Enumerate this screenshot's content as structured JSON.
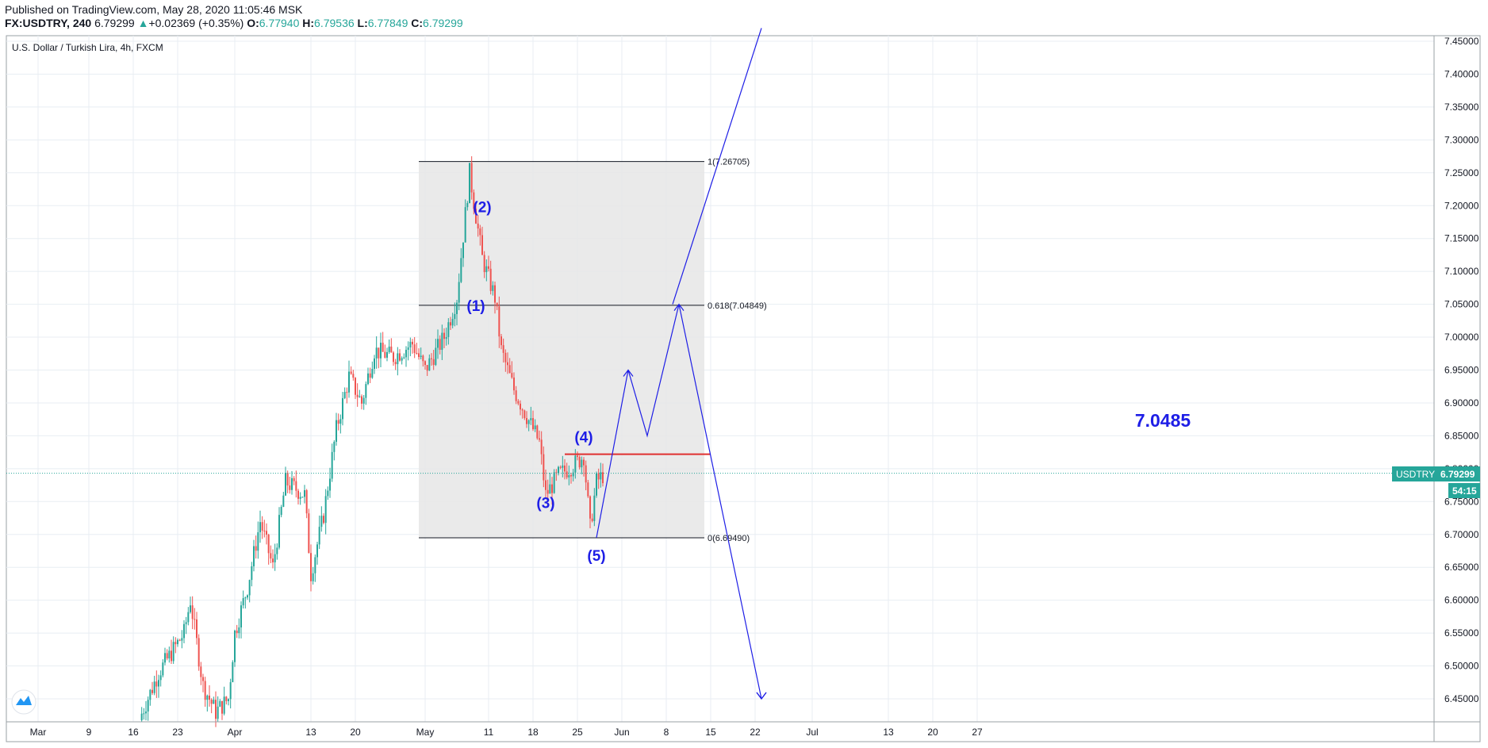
{
  "header": {
    "published": "Published on TradingView.com, May 28, 2020 11:05:46 MSK",
    "symbol": "FX:USDTRY, 240",
    "last": "6.79299",
    "change": "+0.02369 (+0.35%)",
    "o_label": "O:",
    "o": "6.77940",
    "h_label": "H:",
    "h": "6.79536",
    "l_label": "L:",
    "l": "6.77849",
    "c_label": "C:",
    "c": "6.79299"
  },
  "chart_title": "U.S. Dollar / Turkish Lira, 4h, FXCM",
  "price_tag": {
    "symbol": "USDTRY",
    "price": "6.79299",
    "countdown": "54:15"
  },
  "colors": {
    "up": "#26a69a",
    "down": "#ef5350",
    "drawing": "#1e1ee6",
    "level_line": "#e03030",
    "fib_box": "#e6e6e6"
  },
  "annotations": {
    "waves": [
      "(1)",
      "(2)",
      "(3)",
      "(4)",
      "(5)"
    ],
    "big_label": "7.0485",
    "fib": [
      "1(7.26705)",
      "0.618(7.04849)",
      "0(6.69490)"
    ]
  },
  "chart_data": {
    "type": "candlestick",
    "title": "U.S. Dollar / Turkish Lira, 4h, FXCM",
    "ylim": [
      6.42,
      7.47
    ],
    "y_ticks": [
      "7.45000",
      "7.40000",
      "7.35000",
      "7.30000",
      "7.25000",
      "7.20000",
      "7.15000",
      "7.10000",
      "7.05000",
      "7.00000",
      "6.95000",
      "6.90000",
      "6.85000",
      "6.80000",
      "6.75000",
      "6.70000",
      "6.65000",
      "6.60000",
      "6.55000",
      "6.50000",
      "6.45000"
    ],
    "x_ticks": [
      "Mar",
      "9",
      "16",
      "23",
      "Apr",
      "13",
      "20",
      "May",
      "11",
      "18",
      "25",
      "Jun",
      "8",
      "15",
      "22",
      "Jul",
      "13",
      "20",
      "27"
    ],
    "grid": true,
    "price_path": [
      [
        "2020-03-17",
        6.42
      ],
      [
        "2020-03-20",
        6.49
      ],
      [
        "2020-03-24",
        6.55
      ],
      [
        "2020-03-25",
        6.6
      ],
      [
        "2020-03-27",
        6.47
      ],
      [
        "2020-03-29",
        6.43
      ],
      [
        "2020-03-31",
        6.45
      ],
      [
        "2020-04-01",
        6.55
      ],
      [
        "2020-04-03",
        6.62
      ],
      [
        "2020-04-05",
        6.72
      ],
      [
        "2020-04-07",
        6.65
      ],
      [
        "2020-04-09",
        6.78
      ],
      [
        "2020-04-12",
        6.76
      ],
      [
        "2020-04-13",
        6.64
      ],
      [
        "2020-04-15",
        6.73
      ],
      [
        "2020-04-17",
        6.86
      ],
      [
        "2020-04-19",
        6.94
      ],
      [
        "2020-04-21",
        6.9
      ],
      [
        "2020-04-23",
        6.98
      ],
      [
        "2020-04-26",
        6.97
      ],
      [
        "2020-04-29",
        6.99
      ],
      [
        "2020-05-01",
        6.95
      ],
      [
        "2020-05-04",
        7.0
      ],
      [
        "2020-05-06",
        7.06
      ],
      [
        "2020-05-08",
        7.25
      ],
      [
        "2020-05-10",
        7.12
      ],
      [
        "2020-05-12",
        7.06
      ],
      [
        "2020-05-13",
        6.98
      ],
      [
        "2020-05-15",
        6.92
      ],
      [
        "2020-05-17",
        6.88
      ],
      [
        "2020-05-19",
        6.84
      ],
      [
        "2020-05-20",
        6.76
      ],
      [
        "2020-05-22",
        6.79
      ],
      [
        "2020-05-25",
        6.81
      ],
      [
        "2020-05-26",
        6.82
      ],
      [
        "2020-05-27",
        6.71
      ],
      [
        "2020-05-28",
        6.78
      ],
      [
        "2020-05-29",
        6.79
      ]
    ],
    "fib_retracement": {
      "levels": [
        1,
        0.618,
        0
      ],
      "prices": [
        7.26705,
        7.04849,
        6.6949
      ],
      "start": "2020-04-30",
      "end": "2020-06-14"
    },
    "horizontal_line": {
      "price": 6.822,
      "start": "2020-05-23",
      "end": "2020-06-15"
    },
    "projection_paths": [
      [
        [
          "2020-05-28",
          6.695
        ],
        [
          "2020-06-02",
          6.95
        ],
        [
          "2020-06-05",
          6.85
        ],
        [
          "2020-06-10",
          7.05
        ],
        [
          "2020-06-23",
          6.45
        ]
      ],
      [
        [
          "2020-06-09",
          7.05
        ],
        [
          "2020-06-23",
          7.47
        ]
      ]
    ],
    "wave_labels": [
      {
        "label": "(1)",
        "x": "2020-05-09",
        "y": 7.04
      },
      {
        "label": "(2)",
        "x": "2020-05-10",
        "y": 7.19
      },
      {
        "label": "(3)",
        "x": "2020-05-20",
        "y": 6.74
      },
      {
        "label": "(4)",
        "x": "2020-05-26",
        "y": 6.84
      },
      {
        "label": "(5)",
        "x": "2020-05-28",
        "y": 6.66
      }
    ],
    "last_price": 6.79299
  }
}
